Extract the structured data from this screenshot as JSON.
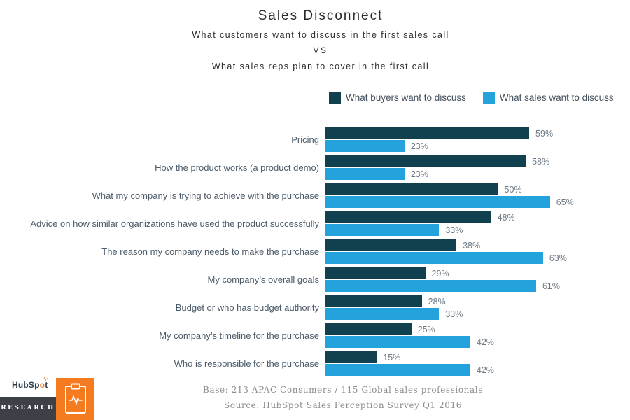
{
  "header": {
    "title": "Sales Disconnect",
    "subtitle1": "What customers want to discuss in the first sales call",
    "vs": "VS",
    "subtitle2": "What sales reps plan to cover in the first call"
  },
  "legend": [
    {
      "label": "What buyers want to discuss",
      "color": "#11414e"
    },
    {
      "label": "What sales want to discuss",
      "color": "#23a2dc"
    }
  ],
  "chart_data": {
    "type": "bar",
    "orientation": "horizontal",
    "title": "Sales Disconnect",
    "categories": [
      "Pricing",
      "How the product works (a product demo)",
      "What my company is trying to achieve with the purchase",
      "Advice on how similar organizations have used the product successfully",
      "The reason my company needs to make the purchase",
      "My company’s overall goals",
      "Budget or who has budget authority",
      "My company’s timeline for the purchase",
      "Who is responsible for the purchase"
    ],
    "series": [
      {
        "name": "What buyers want to discuss",
        "color": "#11414e",
        "values": [
          59,
          58,
          50,
          48,
          38,
          29,
          28,
          25,
          15
        ]
      },
      {
        "name": "What sales want to discuss",
        "color": "#23a2dc",
        "values": [
          23,
          23,
          65,
          33,
          63,
          61,
          33,
          42,
          42
        ]
      }
    ],
    "value_suffix": "%",
    "xlim": [
      0,
      100
    ],
    "grid": false,
    "legend_position": "top-right",
    "data_labels": true
  },
  "footer": {
    "base": "Base: 213 APAC Consumers / 115 Global sales professionals",
    "source": "Source: HubSpot Sales Perception Survey Q1 2016"
  },
  "logo": {
    "brand_part1": "HubSp",
    "brand_o": "o",
    "brand_part2": "t",
    "sub_label": "RESEARCH",
    "orange": "#f47b20",
    "dark": "#3d4147",
    "clipboard_icon": "clipboard-pulse-icon"
  }
}
